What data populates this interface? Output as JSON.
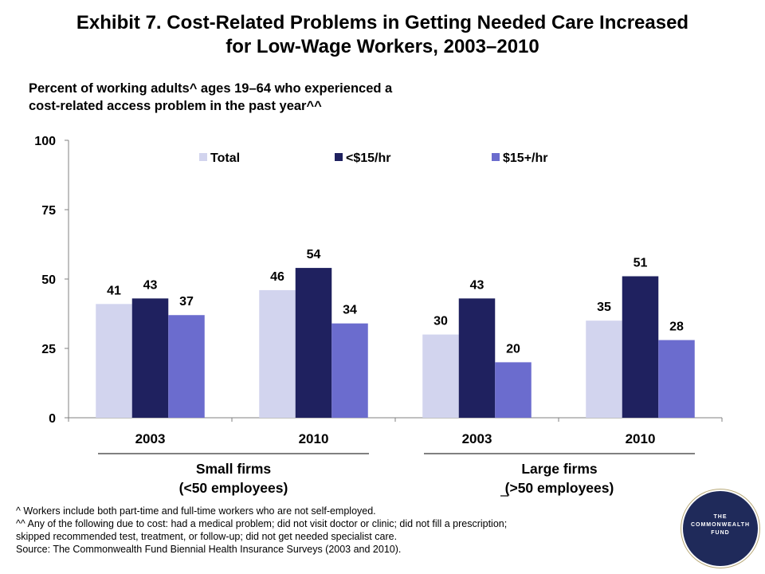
{
  "title": {
    "line1": "Exhibit 7. Cost-Related Problems in Getting Needed Care Increased",
    "line2": "for Low-Wage Workers, 2003–2010"
  },
  "subtitle": {
    "line1": "Percent of working adults^ ages 19–64 who experienced a",
    "line2": "cost-related access problem in the past year^^"
  },
  "chart_data": {
    "type": "bar",
    "title": "Exhibit 7. Cost-Related Problems in Getting Needed Care Increased for Low-Wage Workers, 2003–2010",
    "subtitle": "Percent of working adults^ ages 19–64 who experienced a cost-related access problem in the past year^^",
    "categories": [
      "2003",
      "2010",
      "2003",
      "2010"
    ],
    "groups": [
      {
        "name_line1": "Small firms",
        "name_line2": "(<50 employees)",
        "categories": [
          "2003",
          "2010"
        ]
      },
      {
        "name_line1": "Large firms",
        "name_line2": "(>50 employees)",
        "categories": [
          "2003",
          "2010"
        ]
      }
    ],
    "series": [
      {
        "name": "Total",
        "color": "#d2d4ee",
        "values": [
          41,
          46,
          30,
          35
        ]
      },
      {
        "name": "<$15/hr",
        "color": "#1f215f",
        "values": [
          43,
          54,
          43,
          51
        ]
      },
      {
        "name": "$15+/hr",
        "color": "#6b6cce",
        "values": [
          37,
          34,
          20,
          28
        ]
      }
    ],
    "ylim": [
      0,
      100
    ],
    "yticks": [
      0,
      25,
      50,
      75,
      100
    ],
    "xlabel": "",
    "ylabel": "",
    "grid": false,
    "legend_position": "top"
  },
  "footnotes": [
    "^ Workers include both part-time and full-time workers who are not self-employed.",
    "^^ Any of the following due to cost: had a medical problem; did not visit doctor or clinic; did not fill a prescription;",
    "skipped recommended test, treatment, or follow-up; did not get needed specialist care.",
    "Source: The Commonwealth Fund Biennial Health Insurance Surveys (2003 and 2010)."
  ],
  "logo": {
    "line1": "THE",
    "line2": "COMMONWEALTH",
    "line3": "FUND"
  }
}
